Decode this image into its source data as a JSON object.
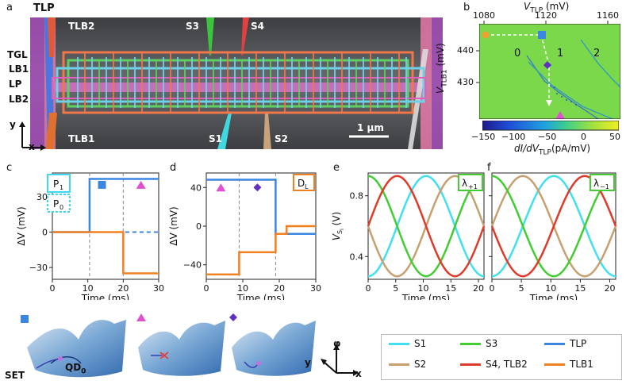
{
  "panel_labels": [
    "a",
    "b",
    "c",
    "d",
    "e",
    "f"
  ],
  "sem": {
    "labels_top": [
      "TLP",
      "TLB2",
      "S3",
      "S4"
    ],
    "labels_left": [
      "TGL",
      "LB1",
      "LP",
      "LB2"
    ],
    "labels_bottom": [
      "TLB1",
      "S1",
      "S2"
    ],
    "scalebar": "1 μm",
    "axes": {
      "x": "x",
      "y": "y"
    },
    "colors": {
      "TLP": "#3b78e7",
      "TLB2": "#e05a3a",
      "S3": "#3cc43c",
      "S4": "#e04040",
      "S1": "#40d8e0",
      "S2": "#c8a27a",
      "TLB1": "#f08c28",
      "TGL": "#b04dc8",
      "LB": "#e070a0",
      "grid_orange": "#f07848",
      "grid_green": "#60d060",
      "grid_cyan": "#70d0e8",
      "grid_pink": "#e060c0"
    }
  },
  "panel_b": {
    "xlabel": "V_TLP (mV)",
    "xlabel_main": "V",
    "xlabel_sub": "TLP",
    "xlabel_unit": " (mV)",
    "ylabel_main": "V",
    "ylabel_sub": "TLB1",
    "ylabel_unit": " (mV)",
    "xticks": [
      "1080",
      "1120",
      "1160"
    ],
    "yticks": [
      "440",
      "430"
    ],
    "regions": [
      "0",
      "1",
      "2"
    ],
    "colorbar_ticks": [
      "−150",
      "−100",
      "−50",
      "0",
      "50"
    ],
    "colorbar_label_main": "dI/dV",
    "colorbar_label_sub": "TLP",
    "colorbar_label_unit": "(pA/mV)",
    "colorbar_stops": [
      "#1a1a8c",
      "#1f4fd8",
      "#1fa0e0",
      "#3fd08a",
      "#a0e040",
      "#f0f020"
    ]
  },
  "panel_c": {
    "ylabel": "ΔV (mV)",
    "xlabel": "Time (ms)",
    "xticks": [
      "0",
      "10",
      "20",
      "30"
    ],
    "yticks": [
      "30",
      "0",
      "−30"
    ],
    "box_labels": [
      "P1",
      "P0"
    ],
    "box_label_main": "P",
    "box_sub1": "1",
    "box_sub0": "0"
  },
  "panel_d": {
    "ylabel": "ΔV (mV)",
    "xlabel": "Time (ms)",
    "xticks": [
      "0",
      "10",
      "20",
      "30"
    ],
    "yticks": [
      "40",
      "0",
      "−40"
    ],
    "box_label_main": "D",
    "box_label_sub": "L"
  },
  "panel_e": {
    "ylabel_main": "V",
    "ylabel_sub": "S",
    "ylabel_subsub": "i",
    "ylabel_unit": " (V)",
    "xlabel": "Time (ms)",
    "xticks": [
      "0",
      "5",
      "10",
      "15",
      "20"
    ],
    "yticks": [
      "0.8",
      "0.4"
    ],
    "box_label_main": "λ",
    "box_label_sub": "+1"
  },
  "panel_f": {
    "xlabel": "Time (ms)",
    "xticks": [
      "0",
      "5",
      "10",
      "15",
      "20"
    ],
    "box_label_main": "λ",
    "box_label_sub": "−1"
  },
  "bottom_schematic": {
    "labels": [
      "SET",
      "QD"
    ],
    "qd_sub": "0",
    "axes": [
      "φ",
      "y",
      "x"
    ]
  },
  "legend": [
    {
      "label": "S1",
      "color": "#40e0f0"
    },
    {
      "label": "S3",
      "color": "#44cc33"
    },
    {
      "label": "TLP",
      "color": "#3a86e0"
    },
    {
      "label": "S2",
      "color": "#c8a070"
    },
    {
      "label": "S4, TLB2",
      "color": "#e03a2a"
    },
    {
      "label": "TLB1",
      "color": "#f08020"
    }
  ],
  "chart_data": [
    {
      "type": "line",
      "panel": "c",
      "xlabel": "Time (ms)",
      "ylabel": "ΔV (mV)",
      "xlim": [
        0,
        30
      ],
      "ylim": [
        -40,
        50
      ],
      "series": [
        {
          "name": "TLP",
          "color": "#3a86e0",
          "x": [
            0,
            10.5,
            10.5,
            30
          ],
          "y": [
            0,
            0,
            45,
            45
          ]
        },
        {
          "name": "TLB1",
          "color": "#f08020",
          "x": [
            0,
            20,
            20,
            30
          ],
          "y": [
            0,
            0,
            -35,
            -35
          ]
        }
      ],
      "markers": [
        {
          "shape": "circle",
          "color": "#f0a030",
          "x": 3,
          "y": 40
        },
        {
          "shape": "square",
          "color": "#3a86e0",
          "x": 14,
          "y": 40
        },
        {
          "shape": "triangle",
          "color": "#e050d0",
          "x": 25,
          "y": 40
        }
      ]
    },
    {
      "type": "line",
      "panel": "d",
      "xlabel": "Time (ms)",
      "ylabel": "ΔV (mV)",
      "xlim": [
        0,
        30
      ],
      "ylim": [
        -55,
        55
      ],
      "series": [
        {
          "name": "TLP",
          "color": "#3a86e0",
          "x": [
            0,
            19,
            19,
            30
          ],
          "y": [
            48,
            48,
            -8,
            -8
          ]
        },
        {
          "name": "TLB1",
          "color": "#f08020",
          "x": [
            0,
            9,
            9,
            19,
            19,
            22,
            22,
            30
          ],
          "y": [
            -50,
            -50,
            -27,
            -27,
            -8,
            -8,
            0,
            0
          ]
        }
      ],
      "markers": [
        {
          "shape": "triangle",
          "color": "#e050d0",
          "x": 4,
          "y": 40
        },
        {
          "shape": "diamond",
          "color": "#6030c0",
          "x": 14,
          "y": 40
        }
      ]
    },
    {
      "type": "line",
      "panel": "e",
      "xlabel": "Time (ms)",
      "xlim": [
        0,
        21
      ],
      "ylim": [
        0.25,
        0.95
      ],
      "series": [
        {
          "name": "S1",
          "phase": 0.5
        },
        {
          "name": "S3",
          "phase": 0.0
        },
        {
          "name": "S4, TLB2",
          "phase": 0.25
        },
        {
          "name": "S2",
          "phase": 0.75
        }
      ]
    },
    {
      "type": "line",
      "panel": "f",
      "xlabel": "Time (ms)",
      "xlim": [
        0,
        21
      ],
      "ylim": [
        0.25,
        0.95
      ],
      "series": [
        {
          "name": "S1",
          "phase": 0.5
        },
        {
          "name": "S3",
          "phase": 0.0
        },
        {
          "name": "S4, TLB2",
          "phase": 0.75
        },
        {
          "name": "S2",
          "phase": 0.25
        }
      ]
    }
  ]
}
